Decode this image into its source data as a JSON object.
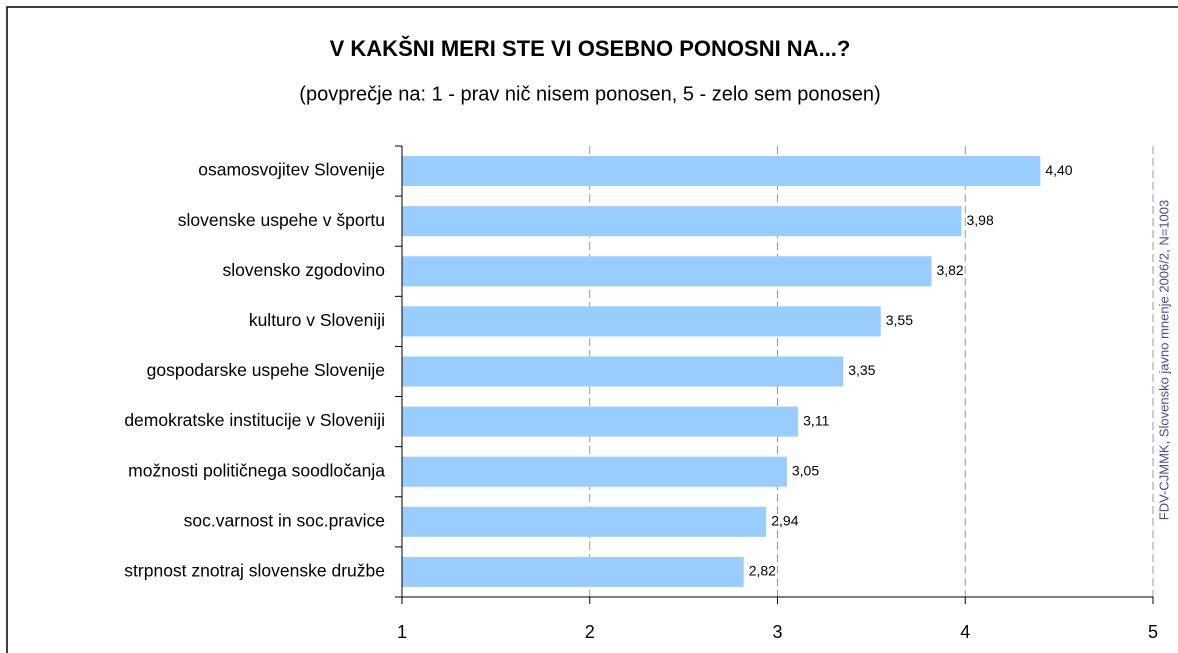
{
  "chart_data": {
    "type": "bar",
    "orientation": "horizontal",
    "title": "V KAKŠNI MERI STE VI OSEBNO PONOSNI NA...?",
    "subtitle": "(povprečje na: 1 - prav nič nisem ponosen, 5 - zelo sem ponosen)",
    "source": "FDV-CJMMK, Slovensko javno mnenje 2006/2, N=1003",
    "categories": [
      "osamosvojitev Slovenije",
      "slovenske uspehe v športu",
      "slovensko zgodovino",
      "kulturo v Sloveniji",
      "gospodarske uspehe Slovenije",
      "demokratske institucije v Sloveniji",
      "možnosti političnega soodločanja",
      "soc.varnost in soc.pravice",
      "strpnost znotraj slovenske družbe"
    ],
    "values": [
      4.4,
      3.98,
      3.82,
      3.55,
      3.35,
      3.11,
      3.05,
      2.94,
      2.82
    ],
    "value_labels": [
      "4,40",
      "3,98",
      "3,82",
      "3,55",
      "3,35",
      "3,11",
      "3,05",
      "2,94",
      "2,82"
    ],
    "color": "#99ccff",
    "xlim": [
      1,
      5
    ],
    "xticks": [
      1,
      2,
      3,
      4,
      5
    ],
    "grid": true
  }
}
